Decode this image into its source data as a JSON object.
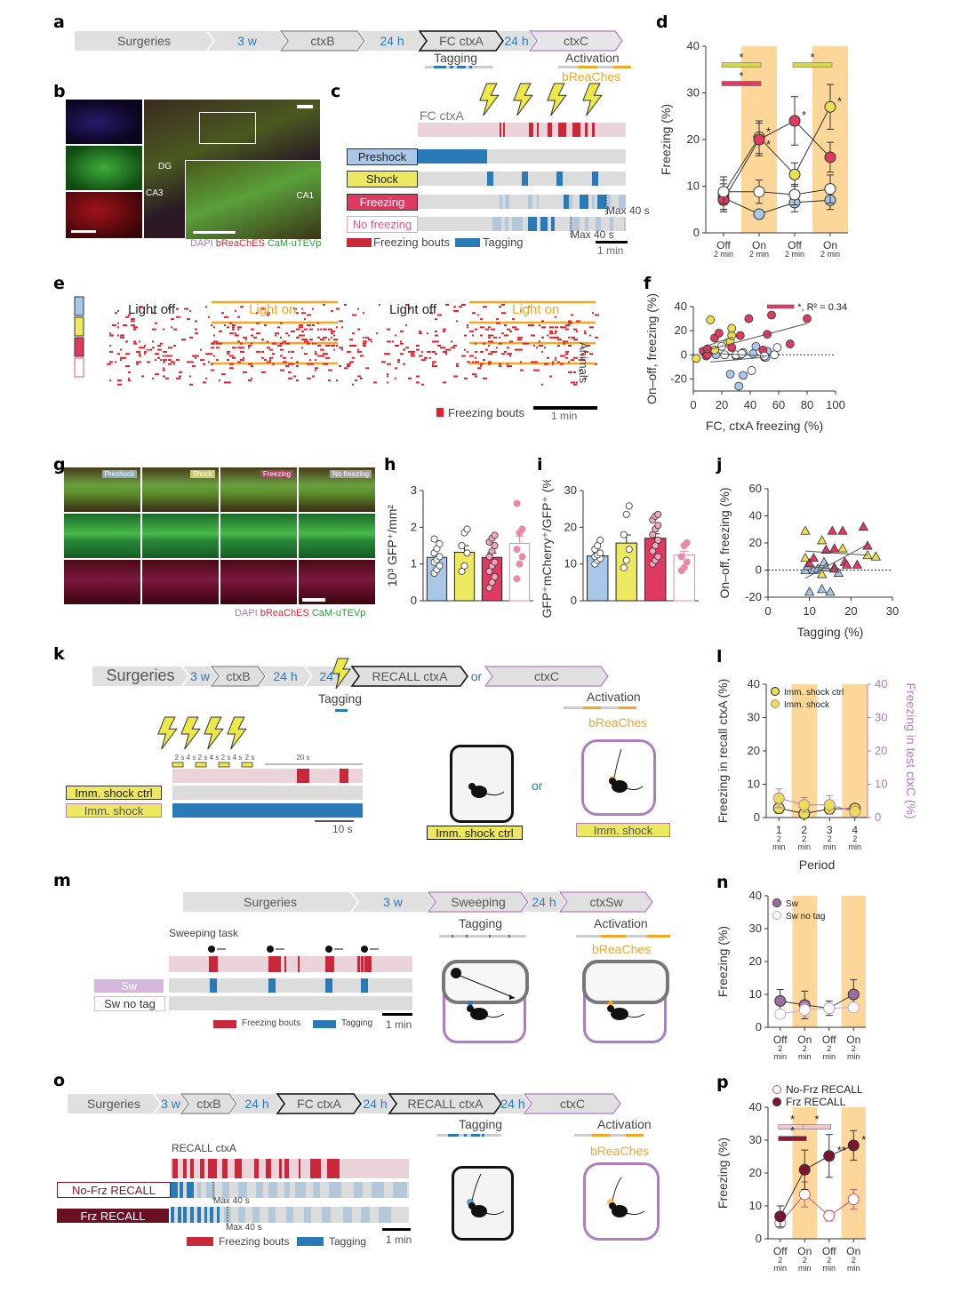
{
  "panels": {
    "a": {
      "label": "a",
      "timeline": [
        "Surgeries",
        "3 w",
        "ctxB",
        "24 h",
        "FC ctxA",
        "24 h",
        "ctxC"
      ],
      "tagging": "Tagging",
      "activation": "Activation",
      "opsin": "bReaChes"
    },
    "b": {
      "label": "b",
      "regions": [
        "DG",
        "CA3",
        "CA1"
      ],
      "stain": {
        "dapi": "DAPI",
        "opsin": "bReaChES",
        "tev": "CaM-uTEVp"
      }
    },
    "c": {
      "label": "c",
      "context": "FC ctxA",
      "groups": [
        "Preshock",
        "Shock",
        "Freezing",
        "No freezing"
      ],
      "max1": "Max 40 s",
      "max2": "Max 40 s",
      "legend_freezing": "Freezing bouts",
      "legend_tagging": "Tagging",
      "scale": "1 min"
    },
    "e": {
      "label": "e",
      "periods": [
        "Light off",
        "Light on",
        "Light off",
        "Light on"
      ],
      "ylabel": "Animals",
      "legend": "Freezing bouts",
      "scale": "1 min"
    },
    "g": {
      "label": "g",
      "columns": [
        "Preshock",
        "Shock",
        "Freezing",
        "No freezing"
      ],
      "stain": {
        "dapi": "DAPI",
        "opsin": "bReaChES",
        "tev": "CaM-uTEVp"
      }
    },
    "k": {
      "label": "k",
      "timeline": [
        "Surgeries",
        "3 w",
        "ctxB",
        "24 h",
        "24 h",
        "RECALL ctxA",
        "or",
        "ctxC"
      ],
      "tagging": "Tagging",
      "activation": "Activation",
      "opsin": "bReaChes",
      "intervals": [
        "2 s",
        "4 s",
        "2 s",
        "4 s",
        "2 s",
        "4 s",
        "2 s",
        "20 s"
      ],
      "groups": [
        "Imm. shock ctrl",
        "Imm. shock"
      ],
      "scale": "10 s",
      "or": "or",
      "box_ctrl": "Imm. shock ctrl",
      "box_shock": "Imm. shock"
    },
    "m": {
      "label": "m",
      "timeline": [
        "Surgeries",
        "3 w",
        "Sweeping",
        "24 h",
        "ctxSw"
      ],
      "task": "Sweeping task",
      "groups": [
        "Sw",
        "Sw no tag"
      ],
      "legend_freezing": "Freezing bouts",
      "legend_tagging": "Tagging",
      "scale": "1 min",
      "tagging": "Tagging",
      "activation": "Activation",
      "opsin": "bReaChes"
    },
    "o": {
      "label": "o",
      "timeline": [
        "Surgeries",
        "3 w",
        "ctxB",
        "24 h",
        "FC ctxA",
        "24 h",
        "RECALL ctxA",
        "24 h",
        "ctxC"
      ],
      "recall": "RECALL ctxA",
      "groups": [
        "No-Frz RECALL",
        "Frz RECALL"
      ],
      "max1": "Max 40 s",
      "max2": "Max 40 s",
      "legend_freezing": "Freezing bouts",
      "legend_tagging": "Tagging",
      "scale": "1 min",
      "tagging": "Tagging",
      "activation": "Activation",
      "opsin": "bReaChes"
    }
  },
  "chart_data": [
    {
      "id": "d",
      "type": "line",
      "ylabel": "Freezing (%)",
      "ylim": [
        0,
        40
      ],
      "yticks": [
        0,
        10,
        20,
        30,
        40
      ],
      "categories": [
        "Off\n2 min",
        "On\n2 min",
        "Off\n2 min",
        "On\n2 min"
      ],
      "light_on": [
        1,
        3
      ],
      "series": [
        {
          "name": "Preshock",
          "color": "#a9c8e8",
          "values": [
            7.5,
            4,
            6.5,
            7
          ],
          "err": [
            3,
            0.5,
            2,
            2
          ]
        },
        {
          "name": "Shock",
          "color": "#e8e050",
          "values": [
            8.5,
            20.5,
            12.5,
            27
          ],
          "err": [
            3.5,
            3.5,
            2.5,
            4.8
          ]
        },
        {
          "name": "Freezing",
          "color": "#e03a62",
          "values": [
            7,
            20,
            24,
            16.2
          ],
          "err": [
            2,
            3.5,
            5.2,
            3.2
          ]
        },
        {
          "name": "No freezing",
          "color": "#ffffff",
          "values": [
            8.8,
            8.8,
            8.2,
            9.4
          ],
          "err": [
            2.5,
            2.5,
            2.2,
            3
          ]
        }
      ],
      "significance": [
        {
          "color": "#d7d84a",
          "from": 0,
          "to": 1,
          "y": 36,
          "label": "*"
        },
        {
          "color": "#e03a62",
          "from": 0,
          "to": 1,
          "y": 32,
          "label": "*"
        },
        {
          "color": "#d7d84a",
          "from": 2,
          "to": 3,
          "y": 36,
          "label": "*"
        }
      ]
    },
    {
      "id": "f",
      "type": "scatter",
      "xlabel": "FC, ctxA freezing (%)",
      "ylabel": "On–off, freezing (%)",
      "xlim": [
        0,
        100
      ],
      "ylim": [
        -30,
        40
      ],
      "xticks": [
        0,
        20,
        40,
        60,
        80,
        100
      ],
      "yticks": [
        -20,
        0,
        20,
        40
      ],
      "annotation": "*, R² = 0.34",
      "series": [
        {
          "name": "Preshock",
          "color": "#a9c8e8",
          "points": [
            [
              12,
              3
            ],
            [
              16,
              0
            ],
            [
              26,
              -16
            ],
            [
              30,
              -1
            ],
            [
              33,
              0
            ],
            [
              35,
              2
            ],
            [
              35,
              -17
            ],
            [
              42,
              1
            ],
            [
              44,
              7
            ],
            [
              50,
              -2
            ],
            [
              52,
              3
            ],
            [
              51,
              -2
            ],
            [
              32,
              -26
            ]
          ]
        },
        {
          "name": "Shock",
          "color": "#e8e050",
          "points": [
            [
              2,
              -3
            ],
            [
              12,
              29
            ],
            [
              15,
              4
            ],
            [
              24,
              10
            ],
            [
              26,
              11
            ],
            [
              27,
              16
            ],
            [
              27,
              22
            ]
          ]
        },
        {
          "name": "Freezing",
          "color": "#e03a62",
          "points": [
            [
              7,
              3
            ],
            [
              9,
              -1
            ],
            [
              10,
              0
            ],
            [
              10,
              5
            ],
            [
              15,
              14
            ],
            [
              18,
              18
            ],
            [
              27,
              6
            ],
            [
              33,
              16
            ],
            [
              39,
              30
            ],
            [
              49,
              4
            ],
            [
              52,
              17
            ],
            [
              55,
              33
            ],
            [
              68,
              9
            ],
            [
              80,
              30
            ]
          ]
        },
        {
          "name": "No freezing",
          "color": "#ffffff",
          "points": [
            [
              20,
              7
            ],
            [
              22,
              0
            ],
            [
              30,
              0
            ],
            [
              41,
              -13
            ],
            [
              50,
              -1
            ],
            [
              57,
              0
            ],
            [
              59,
              6
            ],
            [
              34,
              1
            ]
          ]
        }
      ]
    },
    {
      "id": "h",
      "type": "bar",
      "ylabel": "10³ GFP⁺/mm²",
      "ylim": [
        0,
        3
      ],
      "yticks": [
        0,
        1,
        2,
        3
      ],
      "categories": [
        "Preshock",
        "Shock",
        "Freezing",
        "No freezing"
      ],
      "colors": [
        "#a9c8e8",
        "#ece860",
        "#e03a62",
        "#ffffff"
      ],
      "values": [
        1.18,
        1.32,
        1.18,
        1.56
      ],
      "err": [
        0.08,
        0.18,
        0.12,
        0.2
      ],
      "points": [
        [
          0.75,
          0.85,
          0.95,
          1.05,
          1.12,
          1.2,
          1.3,
          1.42,
          1.55,
          1.68
        ],
        [
          0.8,
          0.95,
          1.3,
          1.5,
          1.85,
          1.95
        ],
        [
          0.35,
          0.5,
          0.65,
          0.8,
          0.95,
          1.05,
          1.2,
          1.35,
          1.5,
          1.6,
          1.7,
          1.78
        ],
        [
          0.6,
          1.0,
          1.2,
          1.4,
          1.85,
          1.95,
          2.65
        ]
      ]
    },
    {
      "id": "i",
      "type": "bar",
      "ylabel": "GFP⁺mCherry⁺/GFP⁺ (%)",
      "ylim": [
        0,
        30
      ],
      "yticks": [
        0,
        10,
        20,
        30
      ],
      "categories": [
        "Preshock",
        "Shock",
        "Freezing",
        "No freezing"
      ],
      "colors": [
        "#a9c8e8",
        "#ece860",
        "#e03a62",
        "#ffffff"
      ],
      "values": [
        12.2,
        15.7,
        17,
        12.5
      ],
      "err": [
        0.8,
        2.2,
        1.2,
        1
      ],
      "points": [
        [
          10,
          11,
          11.5,
          12,
          12.5,
          13,
          14,
          15,
          16.5
        ],
        [
          9,
          11,
          14,
          18,
          23.5,
          25.8
        ],
        [
          10,
          11,
          12,
          13.5,
          15,
          16.5,
          18,
          19.5,
          20.5,
          22,
          23,
          23.5
        ],
        [
          8.2,
          9,
          10.5,
          12,
          15,
          15.8
        ]
      ]
    },
    {
      "id": "j",
      "type": "scatter",
      "xlabel": "Tagging (%)",
      "ylabel": "On–off, freezing (%)",
      "xlim": [
        0,
        30
      ],
      "ylim": [
        -20,
        60
      ],
      "xticks": [
        0,
        10,
        20,
        30
      ],
      "yticks": [
        -20,
        0,
        20,
        40,
        60
      ],
      "series": [
        {
          "name": "Preshock",
          "color": "#a9c8e8",
          "points": [
            [
              9,
              0
            ],
            [
              9.5,
              3
            ],
            [
              10,
              -16
            ],
            [
              11,
              0
            ],
            [
              12,
              1
            ],
            [
              13,
              3
            ],
            [
              13.5,
              6
            ],
            [
              14,
              2
            ],
            [
              15,
              -16
            ],
            [
              16,
              2
            ],
            [
              17,
              -2
            ],
            [
              13,
              -14
            ]
          ]
        },
        {
          "name": "Shock",
          "color": "#e8e050",
          "points": [
            [
              9,
              29
            ],
            [
              9,
              9
            ],
            [
              13,
              22
            ],
            [
              13,
              -3
            ],
            [
              18,
              16
            ],
            [
              24,
              11
            ],
            [
              26,
              10
            ]
          ]
        },
        {
          "name": "Freezing",
          "color": "#e03a62",
          "points": [
            [
              10,
              5
            ],
            [
              11,
              9
            ],
            [
              14,
              15
            ],
            [
              15.5,
              29
            ],
            [
              16,
              16
            ],
            [
              18,
              29
            ],
            [
              18.5,
              6
            ],
            [
              19,
              4
            ],
            [
              21.5,
              4
            ],
            [
              23,
              32
            ],
            [
              24,
              18
            ],
            [
              16,
              1
            ]
          ]
        },
        {
          "name": "No freezing",
          "color": "#ffffff",
          "points": []
        }
      ]
    },
    {
      "id": "l",
      "type": "line",
      "ylabel": "Freezing in recall ctxA (%)",
      "ylabel2": "Freezing in test ctxC (%)",
      "xlabel": "Period",
      "ylim": [
        0,
        40
      ],
      "yticks": [
        0,
        10,
        20,
        30,
        40
      ],
      "categories": [
        "1\n2\nmin",
        "2\n2\nmin",
        "3\n2\nmin",
        "4\n2\nmin"
      ],
      "light_on": [
        1,
        3
      ],
      "series": [
        {
          "name": "Imm. shock ctrl",
          "color": "#e8e050",
          "edge": "#222",
          "values": [
            2.8,
            1.2,
            2.6,
            2.7
          ],
          "err": [
            1.5,
            0.5,
            1.2,
            1
          ]
        },
        {
          "name": "Imm. shock",
          "color": "#e8e050",
          "edge": "#b07cc0",
          "values": [
            5.8,
            3.8,
            3.8,
            1.8
          ],
          "err": [
            2.8,
            2.2,
            2.8,
            1
          ]
        }
      ]
    },
    {
      "id": "n",
      "type": "line",
      "ylabel": "Freezing (%)",
      "ylim": [
        0,
        40
      ],
      "yticks": [
        0,
        10,
        20,
        30,
        40
      ],
      "categories": [
        "Off\n2\nmin",
        "On\n2\nmin",
        "Off\n2\nmin",
        "On\n2\nmin"
      ],
      "light_on": [
        1,
        3
      ],
      "series": [
        {
          "name": "Sw",
          "color": "#9a6fa0",
          "values": [
            8,
            6.8,
            5.8,
            10
          ],
          "err": [
            3.5,
            4.2,
            2.2,
            4.5
          ]
        },
        {
          "name": "Sw no tag",
          "color": "#ffffff",
          "edge": "#c9a5d4",
          "values": [
            4,
            5.3,
            5.8,
            6
          ],
          "err": [
            1,
            2,
            1.5,
            1
          ]
        }
      ]
    },
    {
      "id": "p",
      "type": "line",
      "ylabel": "Freezing (%)",
      "ylim": [
        0,
        40
      ],
      "yticks": [
        0,
        10,
        20,
        30,
        40
      ],
      "categories": [
        "Off\n2\nmin",
        "On\n2\nmin",
        "Off\n2\nmin",
        "On\n2\nmin"
      ],
      "light_on": [
        1,
        3
      ],
      "series": [
        {
          "name": "No-Frz RECALL",
          "color": "#ffffff",
          "edge": "#c05a70",
          "values": [
            4.8,
            13.5,
            7,
            12
          ],
          "err": [
            1,
            3.8,
            1.6,
            3
          ]
        },
        {
          "name": "Frz RECALL",
          "color": "#7a1530",
          "values": [
            6.8,
            21,
            25.2,
            28.4
          ],
          "err": [
            3.2,
            6,
            6.5,
            4.5
          ]
        }
      ],
      "significance": [
        {
          "color": "#f2c8cc",
          "from": 0,
          "to": 1,
          "y": 34,
          "label": "*"
        },
        {
          "color": "#f2c8cc",
          "from": 1,
          "to": 2,
          "y": 34,
          "label": "*"
        },
        {
          "color": "#8a1a35",
          "from": 0,
          "to": 1,
          "y": 30.5,
          "label": "*"
        }
      ],
      "point_marks": [
        "",
        "",
        "**",
        "*"
      ]
    }
  ]
}
